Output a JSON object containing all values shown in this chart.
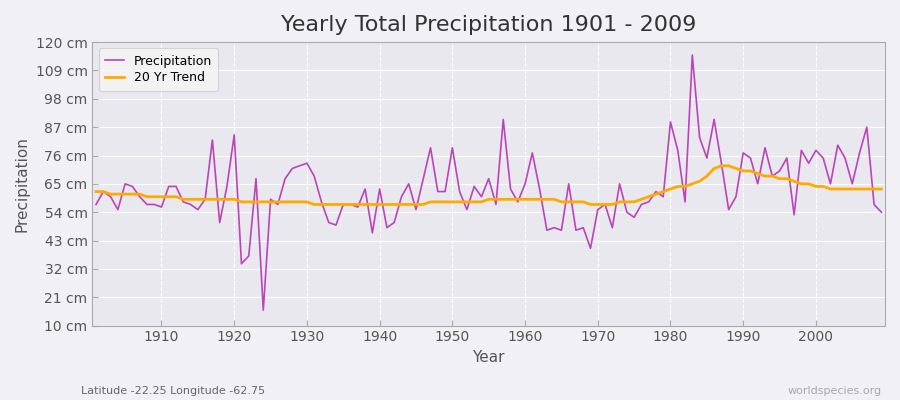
{
  "title": "Yearly Total Precipitation 1901 - 2009",
  "xlabel": "Year",
  "ylabel": "Precipitation",
  "subtitle": "Latitude -22.25 Longitude -62.75",
  "watermark": "worldspecies.org",
  "years": [
    1901,
    1902,
    1903,
    1904,
    1905,
    1906,
    1907,
    1908,
    1909,
    1910,
    1911,
    1912,
    1913,
    1914,
    1915,
    1916,
    1917,
    1918,
    1919,
    1920,
    1921,
    1922,
    1923,
    1924,
    1925,
    1926,
    1927,
    1928,
    1929,
    1930,
    1931,
    1932,
    1933,
    1934,
    1935,
    1936,
    1937,
    1938,
    1939,
    1940,
    1941,
    1942,
    1943,
    1944,
    1945,
    1946,
    1947,
    1948,
    1949,
    1950,
    1951,
    1952,
    1953,
    1954,
    1955,
    1956,
    1957,
    1958,
    1959,
    1960,
    1961,
    1962,
    1963,
    1964,
    1965,
    1966,
    1967,
    1968,
    1969,
    1970,
    1971,
    1972,
    1973,
    1974,
    1975,
    1976,
    1977,
    1978,
    1979,
    1980,
    1981,
    1982,
    1983,
    1984,
    1985,
    1986,
    1987,
    1988,
    1989,
    1990,
    1991,
    1992,
    1993,
    1994,
    1995,
    1996,
    1997,
    1998,
    1999,
    2000,
    2001,
    2002,
    2003,
    2004,
    2005,
    2006,
    2007,
    2008,
    2009
  ],
  "precip": [
    57,
    62,
    60,
    55,
    65,
    64,
    60,
    57,
    57,
    56,
    64,
    64,
    58,
    57,
    55,
    59,
    82,
    50,
    64,
    84,
    34,
    37,
    67,
    16,
    59,
    57,
    67,
    71,
    72,
    73,
    68,
    58,
    50,
    49,
    57,
    57,
    56,
    63,
    46,
    63,
    48,
    50,
    60,
    65,
    55,
    67,
    79,
    62,
    62,
    79,
    62,
    55,
    64,
    60,
    67,
    57,
    90,
    63,
    58,
    65,
    77,
    63,
    47,
    48,
    47,
    65,
    47,
    48,
    40,
    55,
    57,
    48,
    65,
    54,
    52,
    57,
    58,
    62,
    60,
    89,
    78,
    58,
    115,
    83,
    75,
    90,
    73,
    55,
    60,
    77,
    75,
    65,
    79,
    68,
    70,
    75,
    53,
    78,
    73,
    78,
    75,
    65,
    80,
    75,
    65,
    77,
    87,
    57,
    54
  ],
  "trend": [
    62,
    62,
    61,
    61,
    61,
    61,
    61,
    60,
    60,
    60,
    60,
    60,
    59,
    59,
    59,
    59,
    59,
    59,
    59,
    59,
    58,
    58,
    58,
    58,
    58,
    58,
    58,
    58,
    58,
    58,
    57,
    57,
    57,
    57,
    57,
    57,
    57,
    57,
    57,
    57,
    57,
    57,
    57,
    57,
    57,
    57,
    58,
    58,
    58,
    58,
    58,
    58,
    58,
    58,
    59,
    59,
    59,
    59,
    59,
    59,
    59,
    59,
    59,
    59,
    58,
    58,
    58,
    58,
    57,
    57,
    57,
    57,
    58,
    58,
    58,
    59,
    60,
    61,
    62,
    63,
    64,
    64,
    65,
    66,
    68,
    71,
    72,
    72,
    71,
    70,
    70,
    69,
    68,
    68,
    67,
    67,
    66,
    65,
    65,
    64,
    64,
    63,
    63,
    63,
    63,
    63,
    63,
    63,
    63
  ],
  "precip_color": "#bb44bb",
  "trend_color": "#ffaa00",
  "bg_color": "#f0f0f5",
  "plot_bg_color": "#e8e8ee",
  "grid_major_color": "#ffffff",
  "grid_minor_color": "#d8d8e0",
  "ylim": [
    10,
    120
  ],
  "yticks": [
    10,
    21,
    32,
    43,
    54,
    65,
    76,
    87,
    98,
    109,
    120
  ],
  "ytick_labels": [
    "10 cm",
    "21 cm",
    "32 cm",
    "43 cm",
    "54 cm",
    "65 cm",
    "76 cm",
    "87 cm",
    "98 cm",
    "109 cm",
    "120 cm"
  ],
  "xticks": [
    1910,
    1920,
    1930,
    1940,
    1950,
    1960,
    1970,
    1980,
    1990,
    2000
  ],
  "title_fontsize": 16,
  "axis_label_fontsize": 11,
  "tick_fontsize": 10
}
